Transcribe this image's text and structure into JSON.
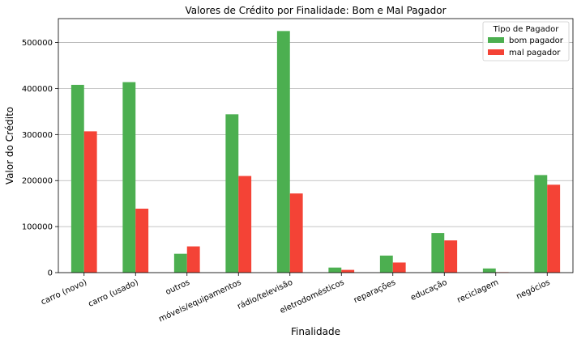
{
  "chart_data": {
    "type": "bar",
    "title": "Valores de Crédito por Finalidade: Bom e Mal Pagador",
    "xlabel": "Finalidade",
    "ylabel": "Valor do Crédito",
    "categories": [
      "carro (novo)",
      "carro (usado)",
      "outros",
      "móveis/equipamentos",
      "rádio/televisão",
      "eletrodomésticos",
      "reparações",
      "educação",
      "reciclagem",
      "negócios"
    ],
    "series": [
      {
        "name": "bom pagador",
        "color": "#4caf50",
        "values": [
          408000,
          414000,
          41000,
          344000,
          525000,
          11000,
          37000,
          86000,
          9000,
          212000
        ]
      },
      {
        "name": "mal pagador",
        "color": "#f44336",
        "values": [
          307000,
          139000,
          57000,
          210000,
          172000,
          6000,
          22000,
          70000,
          1000,
          191000
        ]
      }
    ],
    "ylim": [
      0,
      552000
    ],
    "yticks": [
      0,
      100000,
      200000,
      300000,
      400000,
      500000
    ],
    "ytick_labels": [
      "0",
      "100000",
      "200000",
      "300000",
      "400000",
      "500000"
    ],
    "grid": "y",
    "legend": {
      "title": "Tipo de Pagador",
      "position": "top-right"
    }
  }
}
